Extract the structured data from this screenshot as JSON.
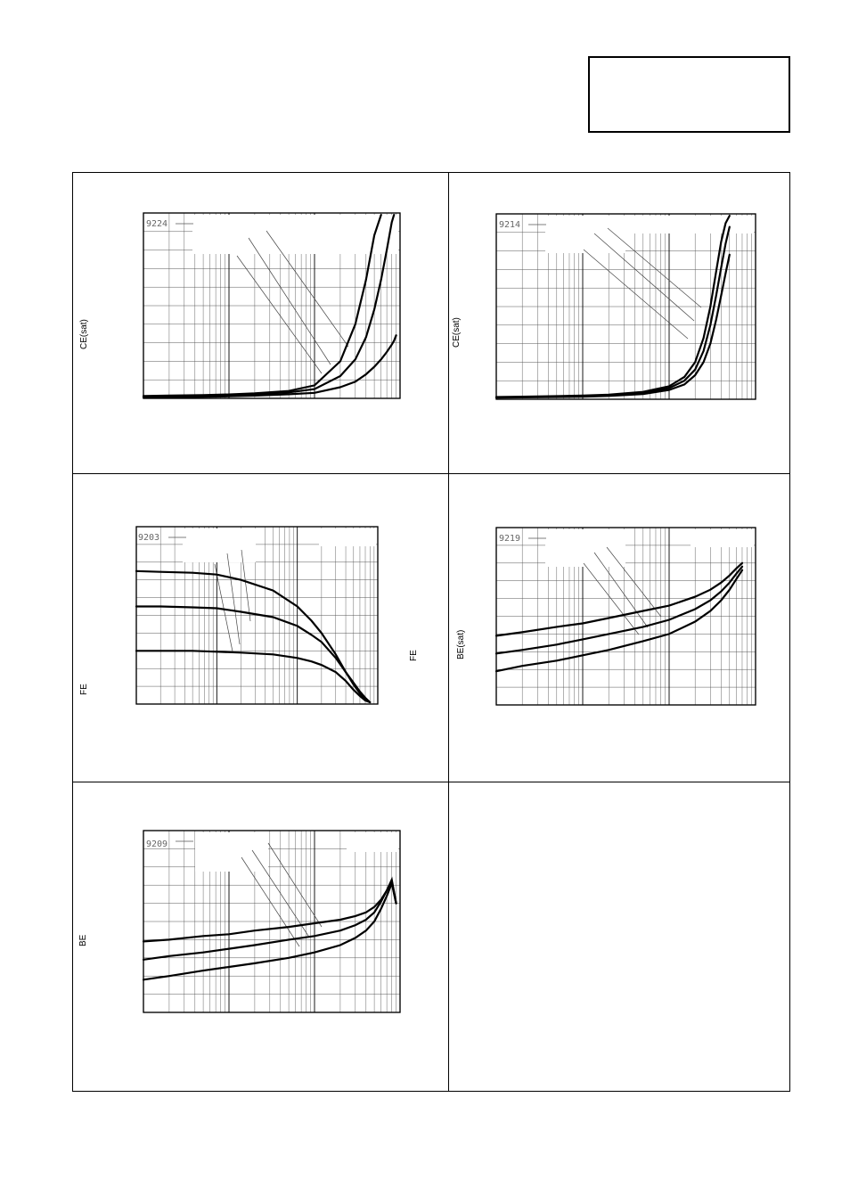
{
  "title_box": "",
  "chart_data": [
    {
      "id": "9224",
      "type": "line",
      "ylabel": "CE(sat)",
      "xscale": "log",
      "xlim": [
        1,
        1000
      ],
      "ylim": [
        0,
        1
      ],
      "x": [
        1,
        2,
        5,
        10,
        20,
        50,
        100,
        200,
        300,
        400,
        500,
        600,
        700,
        800,
        850,
        900
      ],
      "series": [
        {
          "values": [
            0.013,
            0.015,
            0.018,
            0.021,
            0.027,
            0.04,
            0.07,
            0.2,
            0.4,
            0.64,
            0.88,
            0.99,
            null,
            null,
            null,
            null
          ]
        },
        {
          "values": [
            0.01,
            0.012,
            0.015,
            0.018,
            0.023,
            0.032,
            0.05,
            0.12,
            0.21,
            0.33,
            0.48,
            0.64,
            0.8,
            0.95,
            0.99,
            null
          ]
        },
        {
          "values": [
            0.005,
            0.006,
            0.008,
            0.011,
            0.015,
            0.022,
            0.03,
            0.06,
            0.09,
            0.13,
            0.17,
            0.21,
            0.25,
            0.29,
            0.31,
            0.34
          ]
        }
      ]
    },
    {
      "id": "9214",
      "type": "line",
      "ylabel": "CE(sat)",
      "xscale": "log",
      "xlim": [
        1,
        1000
      ],
      "ylim": [
        0,
        1
      ],
      "x": [
        1,
        2,
        5,
        10,
        20,
        50,
        100,
        150,
        200,
        250,
        300,
        350,
        400,
        450,
        500
      ],
      "series": [
        {
          "values": [
            0.012,
            0.014,
            0.017,
            0.02,
            0.025,
            0.04,
            0.07,
            0.12,
            0.2,
            0.33,
            0.5,
            0.69,
            0.85,
            0.95,
            0.99
          ]
        },
        {
          "values": [
            0.01,
            0.012,
            0.014,
            0.017,
            0.021,
            0.033,
            0.06,
            0.1,
            0.16,
            0.26,
            0.4,
            0.56,
            0.71,
            0.84,
            0.93
          ]
        },
        {
          "values": [
            0.008,
            0.01,
            0.012,
            0.014,
            0.018,
            0.028,
            0.05,
            0.08,
            0.13,
            0.2,
            0.3,
            0.43,
            0.56,
            0.68,
            0.78
          ]
        }
      ]
    },
    {
      "id": "9203",
      "type": "line",
      "ylabel": "FE",
      "xscale": "log",
      "xlim": [
        1,
        1000
      ],
      "ylim": [
        0,
        1
      ],
      "x": [
        1,
        2,
        5,
        10,
        20,
        50,
        100,
        150,
        200,
        300,
        400,
        500,
        600,
        700,
        800
      ],
      "series": [
        {
          "values": [
            0.75,
            0.745,
            0.74,
            0.73,
            0.7,
            0.64,
            0.55,
            0.47,
            0.4,
            0.28,
            0.18,
            0.11,
            0.06,
            0.03,
            0.01
          ]
        },
        {
          "values": [
            0.55,
            0.55,
            0.545,
            0.54,
            0.52,
            0.49,
            0.44,
            0.39,
            0.35,
            0.26,
            0.18,
            0.12,
            0.07,
            0.035,
            0.01
          ]
        },
        {
          "values": [
            0.3,
            0.3,
            0.3,
            0.295,
            0.29,
            0.28,
            0.26,
            0.24,
            0.22,
            0.18,
            0.13,
            0.08,
            0.045,
            0.02,
            0.01
          ]
        }
      ]
    },
    {
      "id": "9219",
      "type": "line",
      "ylabel": "BE(sat)",
      "xscale": "log",
      "xlim": [
        1,
        1000
      ],
      "ylim": [
        0,
        1
      ],
      "x": [
        1,
        2,
        5,
        10,
        20,
        50,
        100,
        200,
        300,
        400,
        500,
        600,
        700
      ],
      "series": [
        {
          "values": [
            0.39,
            0.41,
            0.44,
            0.46,
            0.49,
            0.53,
            0.56,
            0.61,
            0.65,
            0.69,
            0.73,
            0.77,
            0.8
          ]
        },
        {
          "values": [
            0.29,
            0.31,
            0.34,
            0.37,
            0.4,
            0.44,
            0.48,
            0.54,
            0.59,
            0.64,
            0.69,
            0.74,
            0.78
          ]
        },
        {
          "values": [
            0.19,
            0.22,
            0.25,
            0.28,
            0.31,
            0.36,
            0.4,
            0.47,
            0.53,
            0.59,
            0.65,
            0.71,
            0.76
          ]
        }
      ]
    },
    {
      "id": "9209",
      "type": "line",
      "ylabel": "BE",
      "xscale": "log",
      "xlim": [
        1,
        1000
      ],
      "ylim": [
        0,
        1
      ],
      "x": [
        1,
        2,
        5,
        10,
        20,
        50,
        100,
        200,
        300,
        400,
        500,
        600,
        700,
        800,
        900
      ],
      "series": [
        {
          "values": [
            0.39,
            0.4,
            0.42,
            0.43,
            0.45,
            0.47,
            0.49,
            0.51,
            0.53,
            0.55,
            0.58,
            0.62,
            0.67,
            0.72,
            0.6
          ]
        },
        {
          "values": [
            0.29,
            0.31,
            0.33,
            0.35,
            0.37,
            0.4,
            0.42,
            0.45,
            0.48,
            0.51,
            0.55,
            0.61,
            0.67,
            0.73,
            0.6
          ]
        },
        {
          "values": [
            0.18,
            0.2,
            0.23,
            0.25,
            0.27,
            0.3,
            0.33,
            0.37,
            0.41,
            0.45,
            0.5,
            0.57,
            0.64,
            0.71,
            0.6
          ]
        }
      ]
    }
  ]
}
